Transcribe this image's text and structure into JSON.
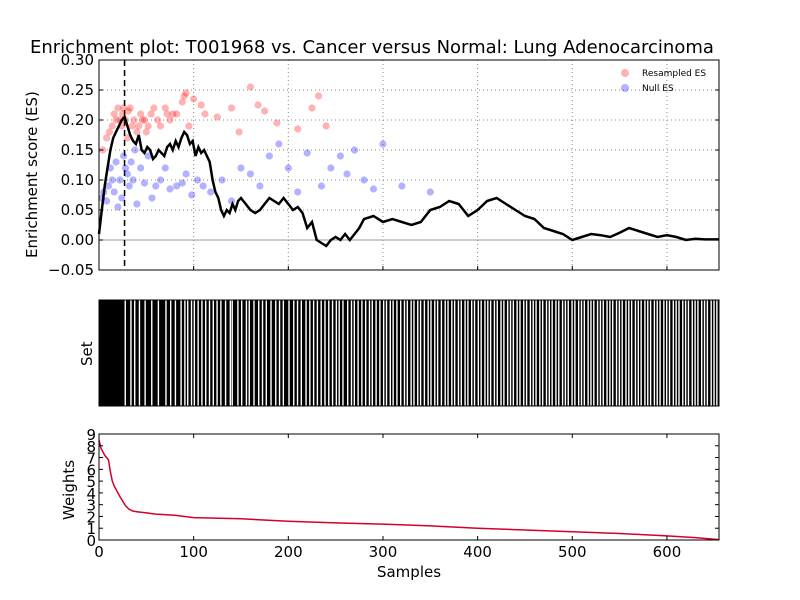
{
  "title": "Enrichment plot: T001968 vs. Cancer versus Normal: Lung Adenocarcinoma",
  "colors": {
    "running_es": "#000000",
    "resampled": "#ff0000",
    "null": "#0000ff",
    "weights": "#d4002a",
    "background": "#ffffff"
  },
  "chart_data": [
    {
      "type": "line",
      "panel": "es",
      "ylabel": "Enrichment score (ES)",
      "xlim": [
        0,
        655
      ],
      "ylim": [
        -0.05,
        0.3
      ],
      "yticks": [
        -0.05,
        0.0,
        0.05,
        0.1,
        0.15,
        0.2,
        0.25,
        0.3
      ],
      "ytick_labels": [
        "−0.05",
        "0.00",
        "0.05",
        "0.10",
        "0.15",
        "0.20",
        "0.25",
        "0.30"
      ],
      "xticks": [
        0,
        100,
        200,
        300,
        400,
        500,
        600
      ],
      "grid": true,
      "legend": {
        "position": "top-right",
        "entries": [
          "Resampled ES",
          "Null ES"
        ]
      },
      "peak_marker_x": 27,
      "series": [
        {
          "name": "running ES",
          "x": [
            0,
            3,
            6,
            9,
            12,
            15,
            18,
            21,
            24,
            27,
            30,
            33,
            36,
            39,
            42,
            45,
            48,
            51,
            54,
            57,
            60,
            63,
            66,
            69,
            72,
            75,
            78,
            81,
            84,
            87,
            90,
            93,
            96,
            99,
            102,
            105,
            108,
            111,
            114,
            117,
            120,
            123,
            126,
            129,
            132,
            135,
            138,
            141,
            144,
            147,
            150,
            155,
            160,
            165,
            170,
            175,
            180,
            185,
            190,
            195,
            200,
            205,
            210,
            215,
            220,
            225,
            230,
            235,
            240,
            245,
            250,
            255,
            260,
            265,
            270,
            275,
            280,
            290,
            300,
            310,
            320,
            330,
            340,
            350,
            360,
            370,
            380,
            390,
            400,
            410,
            420,
            430,
            440,
            450,
            460,
            470,
            480,
            490,
            500,
            510,
            520,
            530,
            540,
            550,
            560,
            570,
            580,
            590,
            600,
            610,
            620,
            630,
            640,
            655
          ],
          "y": [
            0.01,
            0.05,
            0.09,
            0.12,
            0.15,
            0.17,
            0.18,
            0.19,
            0.2,
            0.205,
            0.19,
            0.175,
            0.165,
            0.16,
            0.175,
            0.15,
            0.145,
            0.155,
            0.15,
            0.135,
            0.14,
            0.15,
            0.145,
            0.14,
            0.155,
            0.16,
            0.15,
            0.165,
            0.155,
            0.17,
            0.18,
            0.175,
            0.16,
            0.165,
            0.14,
            0.155,
            0.145,
            0.15,
            0.14,
            0.13,
            0.1,
            0.08,
            0.07,
            0.05,
            0.04,
            0.05,
            0.045,
            0.06,
            0.05,
            0.065,
            0.07,
            0.06,
            0.05,
            0.045,
            0.05,
            0.06,
            0.07,
            0.065,
            0.06,
            0.07,
            0.06,
            0.05,
            0.055,
            0.045,
            0.02,
            0.03,
            0.0,
            -0.005,
            -0.01,
            0.0,
            0.005,
            0.0,
            0.01,
            0.0,
            0.01,
            0.02,
            0.035,
            0.04,
            0.03,
            0.035,
            0.03,
            0.025,
            0.03,
            0.05,
            0.055,
            0.065,
            0.06,
            0.04,
            0.05,
            0.065,
            0.07,
            0.06,
            0.05,
            0.04,
            0.035,
            0.02,
            0.015,
            0.01,
            0.0,
            0.005,
            0.01,
            0.008,
            0.005,
            0.012,
            0.02,
            0.015,
            0.01,
            0.005,
            0.008,
            0.005,
            0.0,
            0.002,
            0.001,
            0.001
          ]
        },
        {
          "name": "Resampled ES",
          "marker": "point",
          "x": [
            4,
            8,
            11,
            14,
            16,
            18,
            20,
            22,
            24,
            25,
            26,
            28,
            30,
            31,
            33,
            35,
            37,
            40,
            42,
            44,
            46,
            48,
            50,
            52,
            55,
            58,
            62,
            65,
            70,
            72,
            75,
            78,
            82,
            88,
            90,
            92,
            95,
            100,
            108,
            112,
            125,
            140,
            148,
            160,
            168,
            175,
            188,
            210,
            225,
            232,
            240
          ],
          "y": [
            0.15,
            0.17,
            0.18,
            0.19,
            0.21,
            0.2,
            0.22,
            0.2,
            0.19,
            0.21,
            0.22,
            0.2,
            0.17,
            0.215,
            0.22,
            0.19,
            0.2,
            0.18,
            0.19,
            0.21,
            0.2,
            0.2,
            0.18,
            0.19,
            0.21,
            0.22,
            0.2,
            0.19,
            0.22,
            0.21,
            0.2,
            0.21,
            0.21,
            0.23,
            0.24,
            0.245,
            0.19,
            0.235,
            0.225,
            0.21,
            0.205,
            0.22,
            0.18,
            0.255,
            0.225,
            0.215,
            0.195,
            0.185,
            0.22,
            0.24,
            0.19
          ]
        },
        {
          "name": "Null ES",
          "marker": "point",
          "x": [
            3,
            5,
            8,
            10,
            12,
            14,
            16,
            18,
            20,
            22,
            24,
            26,
            28,
            30,
            32,
            34,
            36,
            38,
            40,
            44,
            48,
            52,
            56,
            60,
            65,
            70,
            75,
            82,
            88,
            92,
            98,
            104,
            110,
            118,
            130,
            140,
            150,
            160,
            170,
            180,
            190,
            200,
            210,
            220,
            235,
            245,
            255,
            262,
            270,
            280,
            290,
            300,
            320,
            350
          ],
          "y": [
            0.07,
            0.08,
            0.065,
            0.09,
            0.12,
            0.1,
            0.08,
            0.13,
            0.055,
            0.1,
            0.07,
            0.14,
            0.12,
            0.11,
            0.09,
            0.13,
            0.1,
            0.15,
            0.06,
            0.12,
            0.095,
            0.14,
            0.07,
            0.09,
            0.1,
            0.12,
            0.085,
            0.09,
            0.095,
            0.11,
            0.075,
            0.1,
            0.09,
            0.08,
            0.1,
            0.065,
            0.12,
            0.11,
            0.09,
            0.14,
            0.16,
            0.12,
            0.08,
            0.145,
            0.09,
            0.12,
            0.14,
            0.11,
            0.15,
            0.1,
            0.085,
            0.16,
            0.09,
            0.08
          ]
        }
      ]
    },
    {
      "type": "heatmap",
      "panel": "set",
      "ylabel": "Set",
      "xlim": [
        0,
        655
      ],
      "note_hits": "black vertical hit bars marking set members; dense at low ranks, sparser at high ranks",
      "gap_positions": [
        27,
        33,
        37,
        42,
        48,
        55,
        62,
        70,
        75,
        80,
        86,
        90,
        93,
        97,
        100,
        104,
        108,
        112,
        116,
        120,
        124,
        128,
        133,
        138,
        140,
        146,
        150,
        155,
        158,
        163,
        168,
        172,
        176,
        181,
        186,
        190,
        194,
        200,
        205,
        209,
        213,
        218,
        222,
        226,
        230,
        234,
        238,
        242,
        246,
        250,
        253,
        257,
        262,
        266,
        269,
        273,
        277,
        281,
        285,
        288,
        292,
        296,
        300,
        303,
        307,
        310,
        314,
        318,
        322,
        325,
        329,
        332,
        336,
        339,
        343,
        347,
        350,
        354,
        357,
        361,
        365,
        368,
        372,
        375,
        379,
        382,
        386,
        389,
        393,
        396,
        400,
        403,
        407,
        410,
        413,
        417,
        420,
        424,
        427,
        431,
        434,
        437,
        441,
        444,
        448,
        451,
        455,
        458,
        461,
        465,
        468,
        472,
        475,
        478,
        482,
        485,
        489,
        492,
        495,
        499,
        502,
        506,
        509,
        512,
        516,
        519,
        522,
        526,
        529,
        532,
        536,
        539,
        542,
        546,
        549,
        552,
        556,
        559,
        562,
        566,
        569,
        572,
        576,
        579,
        582,
        586,
        589,
        592,
        596,
        599,
        602,
        606,
        609,
        612,
        616,
        619,
        622,
        626,
        629,
        632,
        636,
        639,
        642,
        646,
        649,
        652
      ]
    },
    {
      "type": "line",
      "panel": "weights",
      "xlabel": "Samples",
      "ylabel": "Weights",
      "xlim": [
        0,
        655
      ],
      "ylim": [
        0,
        9
      ],
      "yticks": [
        0,
        1,
        2,
        3,
        4,
        5,
        6,
        7,
        8,
        9
      ],
      "xticks": [
        0,
        100,
        200,
        300,
        400,
        500,
        600
      ],
      "series": [
        {
          "name": "weights",
          "x": [
            0,
            2,
            4,
            6,
            8,
            10,
            12,
            14,
            16,
            18,
            20,
            22,
            25,
            28,
            32,
            36,
            40,
            50,
            60,
            80,
            100,
            150,
            200,
            250,
            300,
            350,
            400,
            450,
            500,
            550,
            600,
            630,
            655
          ],
          "y": [
            8.5,
            7.8,
            7.5,
            7.2,
            7.0,
            6.8,
            5.8,
            5.0,
            4.6,
            4.3,
            4.0,
            3.7,
            3.3,
            2.9,
            2.6,
            2.45,
            2.4,
            2.3,
            2.2,
            2.1,
            1.9,
            1.8,
            1.6,
            1.45,
            1.35,
            1.2,
            1.0,
            0.85,
            0.7,
            0.55,
            0.35,
            0.2,
            0.03
          ]
        }
      ]
    }
  ]
}
